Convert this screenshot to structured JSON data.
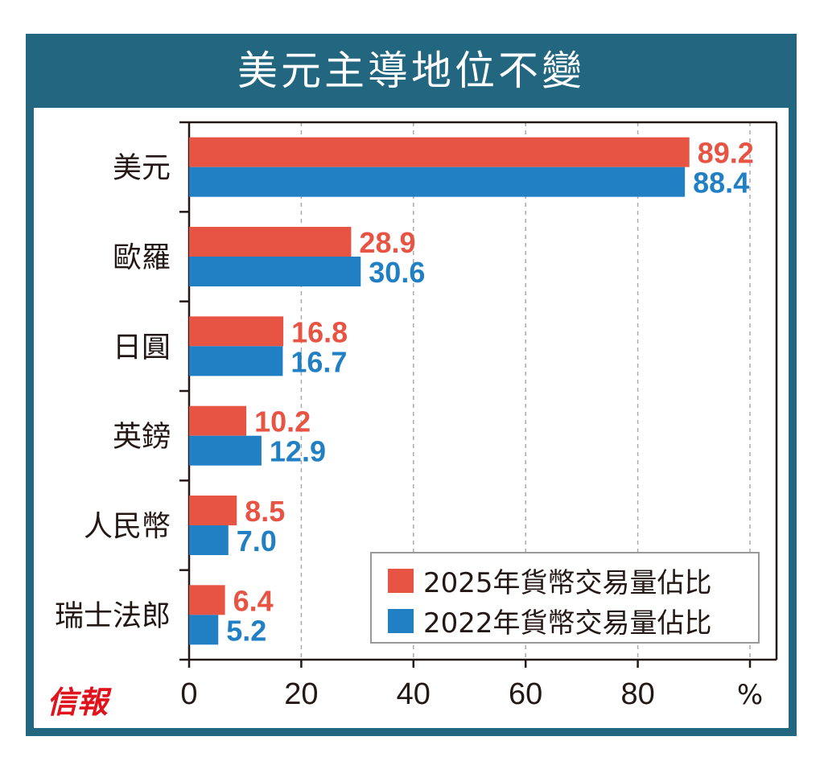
{
  "chart_data": {
    "type": "bar",
    "orientation": "horizontal",
    "title": "美元主導地位不變",
    "categories": [
      "美元",
      "歐羅",
      "日圓",
      "英鎊",
      "人民幣",
      "瑞士法郎"
    ],
    "series": [
      {
        "name": "2025年貨幣交易量佔比",
        "color": "#e85444",
        "values": [
          89.2,
          28.9,
          16.8,
          10.2,
          8.5,
          6.4
        ],
        "labels": [
          "89.2",
          "28.9",
          "16.8",
          "10.2",
          "8.5",
          "6.4"
        ]
      },
      {
        "name": "2022年貨幣交易量佔比",
        "color": "#2180c4",
        "values": [
          88.4,
          30.6,
          16.7,
          12.9,
          7.0,
          5.2
        ],
        "labels": [
          "88.4",
          "30.6",
          "16.7",
          "12.9",
          "7.0",
          "5.2"
        ]
      }
    ],
    "xticks": [
      "0",
      "20",
      "40",
      "60",
      "80"
    ],
    "xtick_values": [
      0,
      20,
      40,
      60,
      80
    ],
    "xunit": "%",
    "xlim": [
      0,
      100
    ],
    "grid": "vertical-dashed",
    "legend": "bottom-right"
  },
  "source_logo": "信報"
}
